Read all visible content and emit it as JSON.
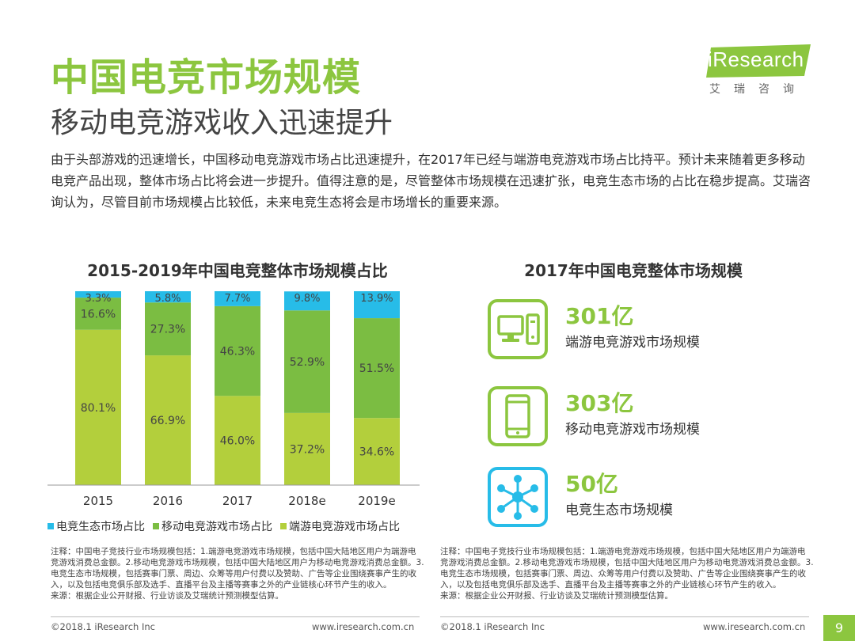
{
  "header": {
    "title": "中国电竞市场规模",
    "subtitle": "移动电竞游戏收入迅速提升"
  },
  "logo": {
    "text": "iResearch",
    "sub": "艾瑞咨询"
  },
  "intro": "由于头部游戏的迅速增长，中国移动电竞游戏市场占比迅速提升，在2017年已经与端游电竞游戏市场占比持平。预计未来随着更多移动电竞产品出现，整体市场占比将会进一步提升。值得注意的是，尽管整体市场规模在迅速扩张，电竞生态市场的占比在稳步提高。艾瑞咨询认为，尽管目前市场规模占比较低，未来电竞生态将会是市场增长的重要来源。",
  "chart_data": {
    "type": "bar",
    "stacked": true,
    "title": "2015-2019年中国电竞整体市场规模占比",
    "categories": [
      "2015",
      "2016",
      "2017",
      "2018e",
      "2019e"
    ],
    "series": [
      {
        "name": "端游电竞游戏市场占比",
        "color": "#b3cf3c",
        "values": [
          80.1,
          66.9,
          46.0,
          37.2,
          34.6
        ],
        "labels": [
          "80.1%",
          "66.9%",
          "46.0%",
          "37.2%",
          "34.6%"
        ]
      },
      {
        "name": "移动电竞游戏市场占比",
        "color": "#7bbd42",
        "values": [
          16.6,
          27.3,
          46.3,
          52.9,
          51.5
        ],
        "labels": [
          "16.6%",
          "27.3%",
          "46.3%",
          "52.9%",
          "51.5%"
        ]
      },
      {
        "name": "电竞生态市场占比",
        "color": "#27bce8",
        "values": [
          3.3,
          5.8,
          7.7,
          9.8,
          13.9
        ],
        "labels": [
          "3.3%",
          "5.8%",
          "7.7%",
          "9.8%",
          "13.9%"
        ]
      }
    ],
    "legend_order": [
      "电竞生态市场占比",
      "移动电竞游戏市场占比",
      "端游电竞游戏市场占比"
    ],
    "ylim": [
      0,
      100
    ],
    "legend_position": "bottom"
  },
  "right_panel": {
    "title": "2017年中国电竞整体市场规模",
    "items": [
      {
        "value": "301亿",
        "label": "端游电竞游戏市场规模",
        "icon": "desktop-computer-icon"
      },
      {
        "value": "303亿",
        "label": "移动电竞游戏市场规模",
        "icon": "mobile-phone-icon"
      },
      {
        "value": "50亿",
        "label": "电竞生态市场规模",
        "icon": "network-nodes-icon"
      }
    ]
  },
  "colors": {
    "brand_green": "#8cc63f",
    "ecosystem_blue": "#27bce8"
  },
  "note_text": "注释：中国电子竞技行业市场规模包括：1.端游电竞游戏市场规模，包括中国大陆地区用户为端游电竞游戏消费总金额。2.移动电竞游戏市场规模，包括中国大陆地区用户为移动电竞游戏消费总金额。3.电竞生态市场规模，包括赛事门票、周边、众筹等用户付费以及赞助、广告等企业围绕赛事产生的收入，以及包括电竞俱乐部及选手、直播平台及主播等赛事之外的产业链核心环节产生的收入。",
  "source_text": "来源：根据企业公开财报、行业访谈及艾瑞统计预测模型估算。",
  "footer": {
    "copyright": "©2018.1 iResearch Inc",
    "url": "www.iresearch.com.cn",
    "page": "9"
  }
}
